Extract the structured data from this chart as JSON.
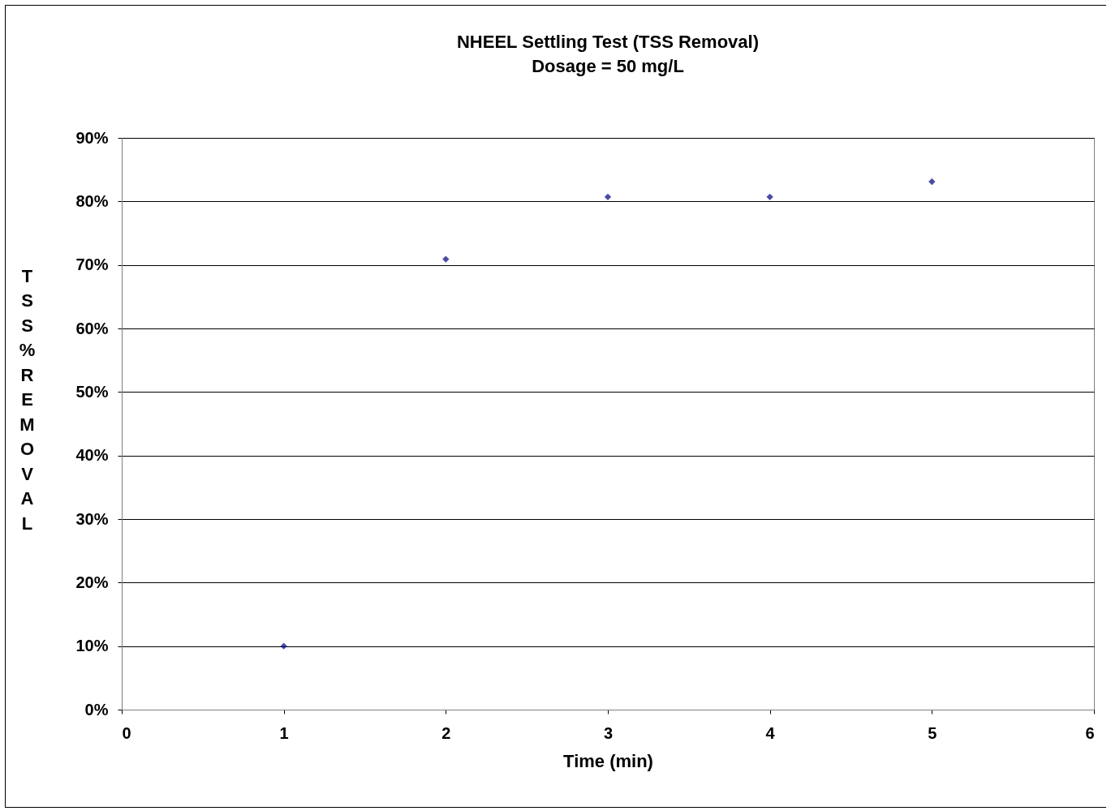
{
  "chart_data": {
    "type": "scatter",
    "title": "NHEEL Settling Test (TSS Removal)",
    "subtitle": "Dosage = 50 mg/L",
    "xlabel": "Time (min)",
    "ylabel": "TSS%REMOVAL",
    "x": [
      1,
      2,
      3,
      4,
      5
    ],
    "series": [
      {
        "color": "#000080",
        "values": [
          10,
          70.9,
          80.7,
          80.7,
          83.1
        ]
      }
    ],
    "xlim": [
      0,
      6
    ],
    "xticks": [
      0,
      1,
      2,
      3,
      4,
      5,
      6
    ],
    "ylim": [
      0,
      90
    ],
    "yticks": [
      {
        "value": 0,
        "label": "0%"
      },
      {
        "value": 10,
        "label": "10%"
      },
      {
        "value": 20,
        "label": "20%"
      },
      {
        "value": 30,
        "label": "30%"
      },
      {
        "value": 40,
        "label": "40%"
      },
      {
        "value": 50,
        "label": "50%"
      },
      {
        "value": 60,
        "label": "60%"
      },
      {
        "value": 70,
        "label": "70%"
      },
      {
        "value": 80,
        "label": "80%"
      },
      {
        "value": 90,
        "label": "90%"
      }
    ],
    "grid": "y",
    "legend": false,
    "marker": "diamond"
  }
}
